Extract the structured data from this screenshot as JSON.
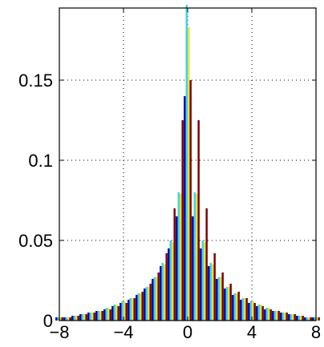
{
  "chart_data": {
    "type": "bar",
    "title": "",
    "xlabel": "",
    "ylabel": "",
    "xlim": [
      -8,
      8
    ],
    "ylim": [
      0,
      0.195
    ],
    "grid": true,
    "grid_style": "dotted",
    "x_ticks": [
      -8,
      -4,
      0,
      4,
      8
    ],
    "x_tick_labels": [
      "−8",
      "−4",
      "0",
      "4",
      "8"
    ],
    "y_ticks": [
      0,
      0.05,
      0.1,
      0.15
    ],
    "y_tick_labels": [
      "0",
      "0.05",
      "0.1",
      "0.15"
    ],
    "x": [
      -8,
      -7.5,
      -7,
      -6.5,
      -6,
      -5.5,
      -5,
      -4.5,
      -4,
      -3.5,
      -3,
      -2.5,
      -2,
      -1.5,
      -1,
      -0.5,
      0,
      0.5,
      1,
      1.5,
      2,
      2.5,
      3,
      3.5,
      4,
      4.5,
      5,
      5.5,
      6,
      6.5,
      7,
      7.5,
      8
    ],
    "series": [
      {
        "color": "#0000b0",
        "values": [
          0.002,
          0.002,
          0.003,
          0.004,
          0.005,
          0.006,
          0.007,
          0.009,
          0.011,
          0.013,
          0.016,
          0.02,
          0.026,
          0.034,
          0.045,
          0.065,
          0.14,
          0.065,
          0.045,
          0.034,
          0.026,
          0.02,
          0.016,
          0.013,
          0.011,
          0.009,
          0.007,
          0.006,
          0.005,
          0.004,
          0.003,
          0.002,
          0.002
        ]
      },
      {
        "color": "#3fd2ee",
        "values": [
          0.002,
          0.002,
          0.003,
          0.004,
          0.005,
          0.006,
          0.008,
          0.01,
          0.012,
          0.014,
          0.017,
          0.021,
          0.027,
          0.036,
          0.05,
          0.08,
          0.197,
          0.08,
          0.05,
          0.036,
          0.027,
          0.021,
          0.017,
          0.014,
          0.012,
          0.01,
          0.008,
          0.006,
          0.005,
          0.004,
          0.003,
          0.002,
          0.002
        ]
      },
      {
        "color": "#e6e62e",
        "values": [
          0.002,
          0.002,
          0.003,
          0.004,
          0.005,
          0.006,
          0.008,
          0.01,
          0.012,
          0.014,
          0.017,
          0.021,
          0.027,
          0.035,
          0.049,
          0.079,
          0.183,
          0.079,
          0.049,
          0.035,
          0.027,
          0.021,
          0.017,
          0.014,
          0.012,
          0.01,
          0.008,
          0.006,
          0.005,
          0.004,
          0.003,
          0.002,
          0.002
        ]
      },
      {
        "color": "#800000",
        "values": [
          0.002,
          0.002,
          0.003,
          0.004,
          0.005,
          0.006,
          0.007,
          0.009,
          0.011,
          0.014,
          0.018,
          0.023,
          0.03,
          0.042,
          0.07,
          0.125,
          0.15,
          0.125,
          0.07,
          0.042,
          0.03,
          0.023,
          0.018,
          0.014,
          0.011,
          0.009,
          0.007,
          0.006,
          0.005,
          0.004,
          0.003,
          0.002,
          0.002
        ]
      }
    ]
  }
}
